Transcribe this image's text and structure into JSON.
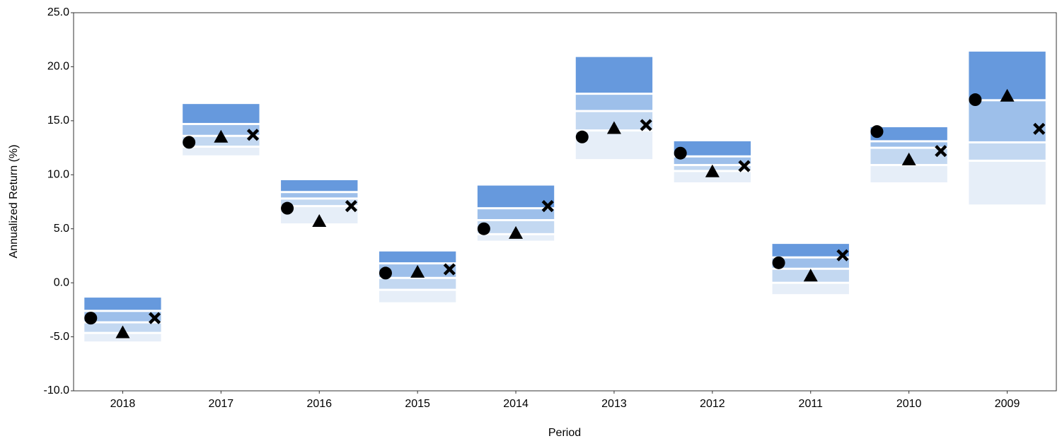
{
  "chart_data": {
    "type": "floating-range",
    "y_label": "Annualized Return (%)",
    "x_label": "Period",
    "categories": [
      "2018",
      "2017",
      "2016",
      "2015",
      "2014",
      "2013",
      "2012",
      "2011",
      "2010",
      "2009"
    ],
    "ranges": [
      [
        -1.37,
        -2.6,
        -3.66,
        -4.64,
        -5.43
      ],
      [
        16.55,
        14.7,
        13.6,
        12.6,
        11.8
      ],
      [
        9.5,
        8.4,
        7.8,
        7.1,
        5.5
      ],
      [
        2.9,
        1.8,
        0.45,
        -0.65,
        -1.8
      ],
      [
        9.0,
        6.9,
        5.8,
        4.5,
        3.9
      ],
      [
        20.9,
        17.5,
        15.9,
        14.1,
        11.45
      ],
      [
        13.1,
        11.7,
        10.9,
        10.35,
        9.3
      ],
      [
        3.6,
        2.35,
        1.3,
        0.0,
        -1.05
      ],
      [
        14.4,
        13.1,
        12.5,
        10.9,
        9.3
      ],
      [
        21.4,
        16.9,
        13.0,
        11.3,
        7.25
      ]
    ],
    "range_colors": [
      "#6699dd",
      "#9dbfea",
      "#c3d8f1",
      "#e6eef8"
    ],
    "series": [
      {
        "marker": "circle",
        "color": "#000000",
        "values": [
          -3.27,
          13.0,
          6.9,
          0.9,
          5.0,
          13.5,
          12.0,
          1.85,
          14.0,
          16.95
        ]
      },
      {
        "marker": "triangle",
        "color": "#000000",
        "values": [
          -4.6,
          13.5,
          5.7,
          1.0,
          4.6,
          14.3,
          10.3,
          0.65,
          11.4,
          17.3
        ]
      },
      {
        "marker": "cross",
        "color": "#000000",
        "values": [
          -3.27,
          13.7,
          7.1,
          1.25,
          7.1,
          14.6,
          10.8,
          2.55,
          12.2,
          14.25
        ]
      }
    ],
    "ylim": [
      -10,
      25
    ],
    "yticks": [
      {
        "value": -10,
        "label": "-10.0"
      },
      {
        "value": -5,
        "label": "-5.0"
      },
      {
        "value": 0,
        "label": "0.0"
      },
      {
        "value": 5,
        "label": "5.0"
      },
      {
        "value": 10,
        "label": "10.0"
      },
      {
        "value": 15,
        "label": "15.0"
      },
      {
        "value": 20,
        "label": "20.0"
      },
      {
        "value": 25,
        "label": "25.0"
      }
    ]
  }
}
